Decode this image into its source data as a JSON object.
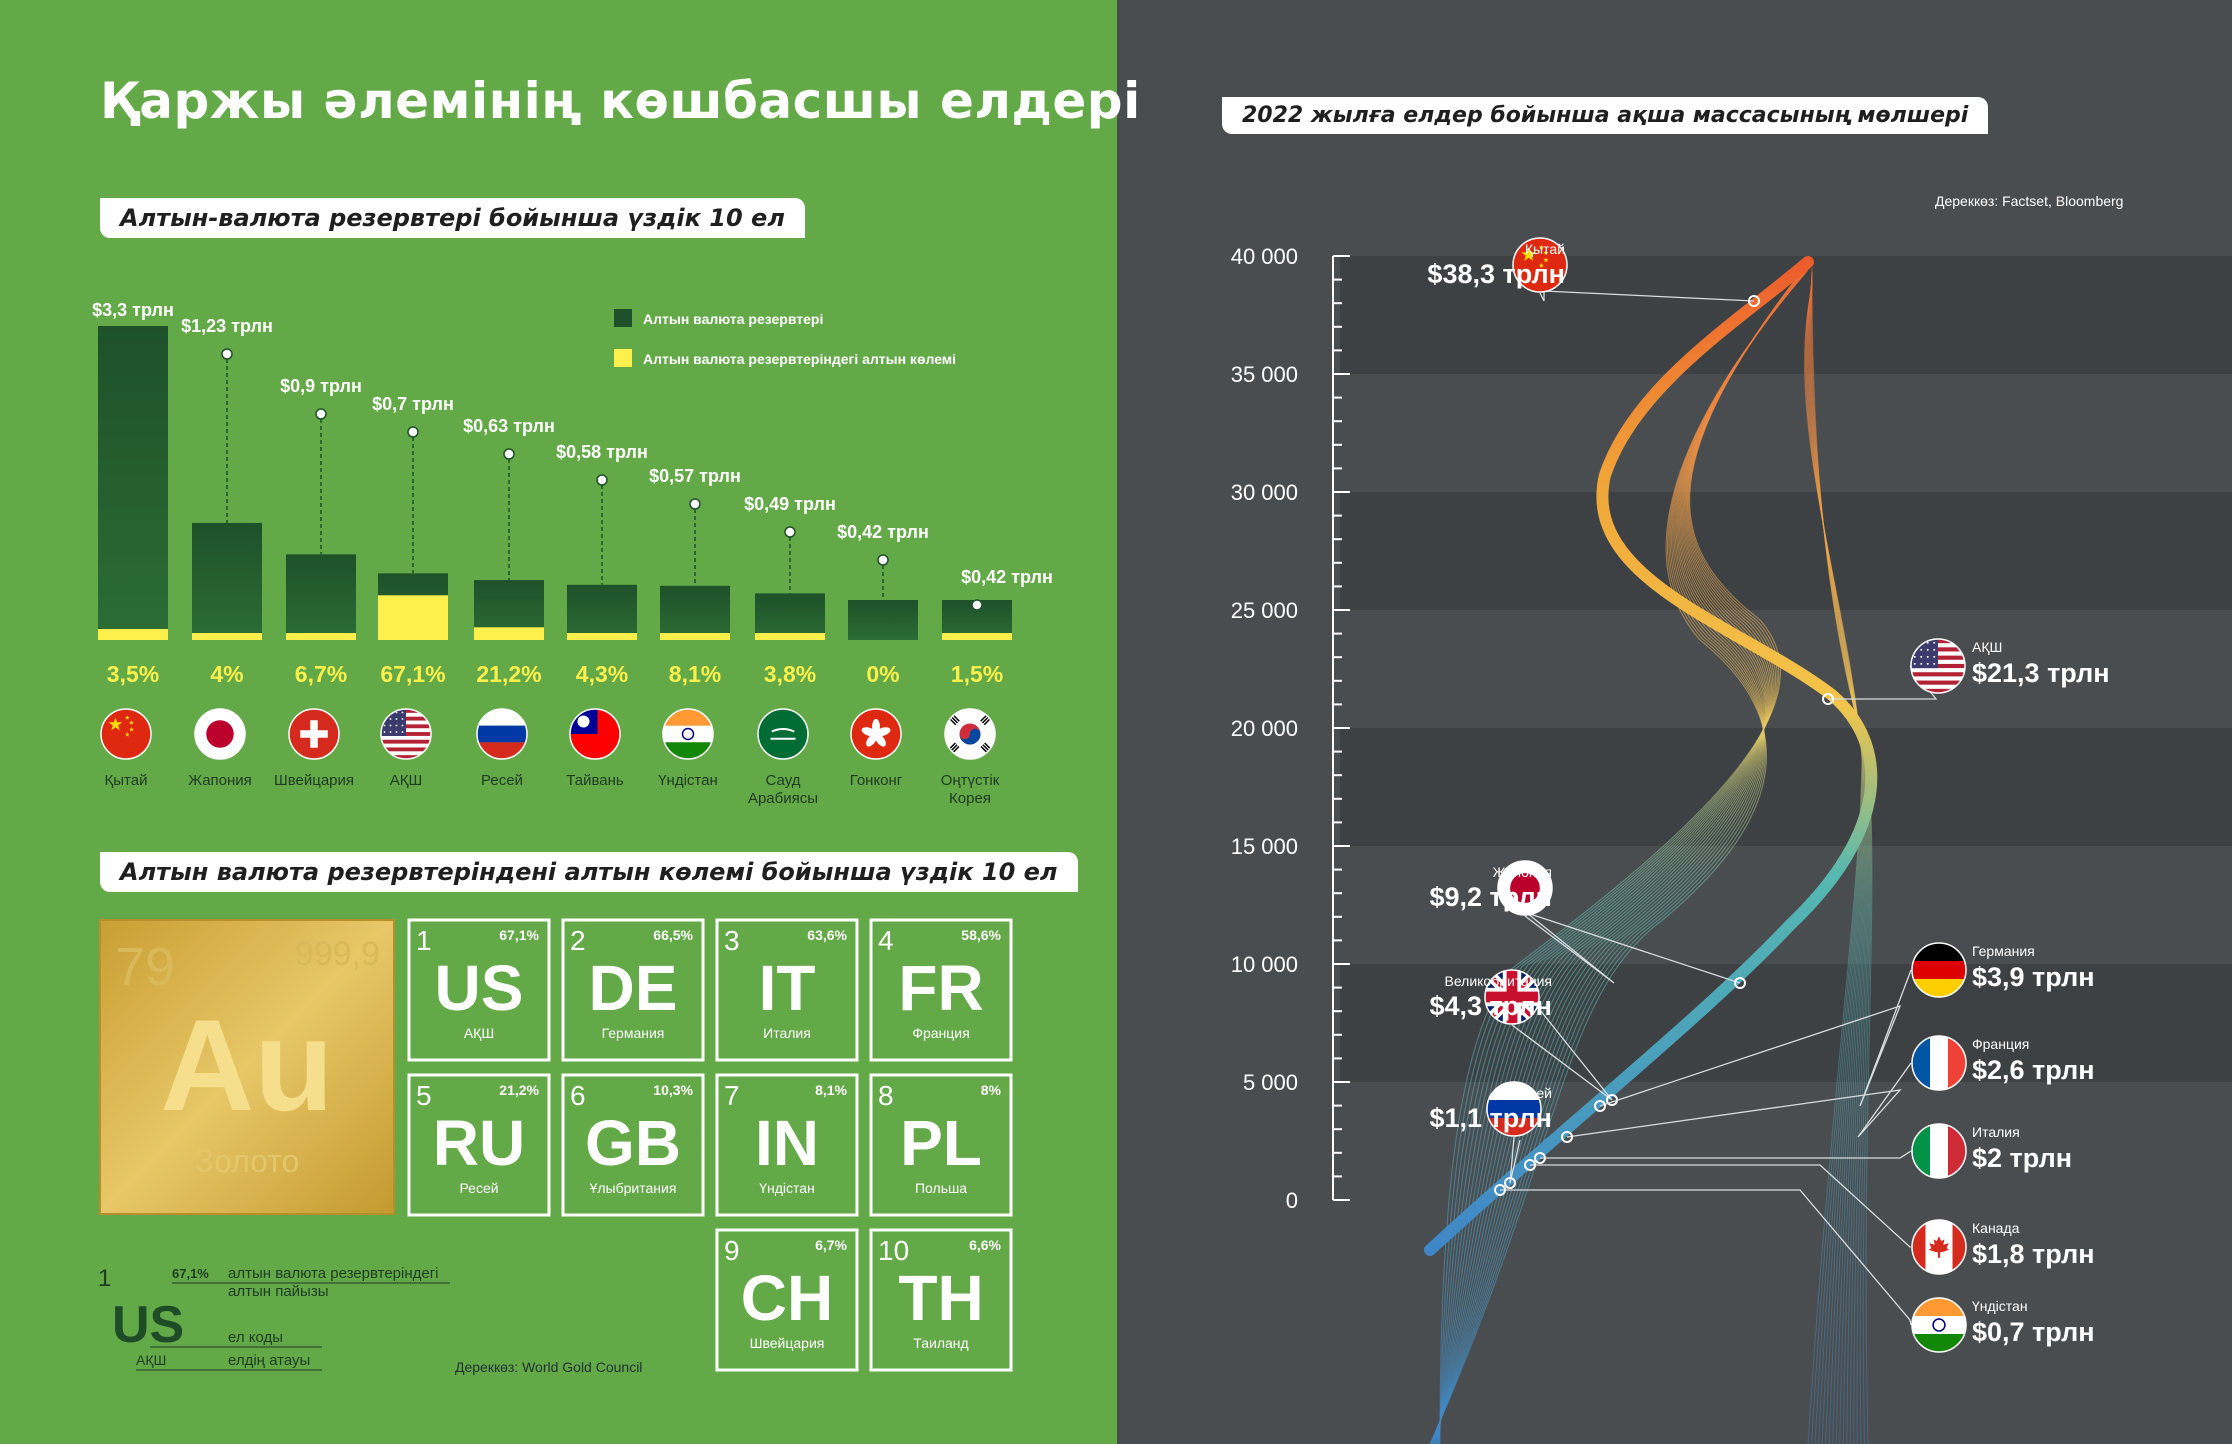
{
  "title": "Қаржы әлемінің көшбасшы елдері",
  "section1_title": "Алтын-валюта резервтері бойынша үздік 10 ел",
  "section2_title": "Алтын валюта резервтеріндені алтын көлемі бойынша үздік 10 ел",
  "right_title": "2022 жылға елдер бойынша ақша массасының мөлшері",
  "right_source": "Дереккөз: Factset, Bloomberg",
  "left_source": "Дереккөз: World Gold Council",
  "colors": {
    "dark_green": "#1e5129",
    "yellow": "#fdf04d",
    "left_bg": "#63a947",
    "right_bg": "#4a4d50",
    "orange": "#ef6a30",
    "blue": "#3f86c8"
  },
  "chart_data": [
    {
      "type": "bar",
      "title": "Алтын-валюта резервтері бойынша үздік 10 ел",
      "legend": [
        "Алтын валюта резервтері",
        "Алтын валюта резервтеріндегі алтын көлемі"
      ],
      "legend_position": "top-right",
      "categories": [
        "Қытай",
        "Жапония",
        "Швейцария",
        "АҚШ",
        "Ресей",
        "Тайвань",
        "Үндістан",
        "Сауд Арабиясы",
        "Гонконг",
        "Оңтүстік Корея"
      ],
      "value_labels": [
        "$3,3 трлн",
        "$1,23 трлн",
        "$0,9 трлн",
        "$0,7 трлн",
        "$0,63 трлн",
        "$0,58 трлн",
        "$0,57 трлн",
        "$0,49 трлн",
        "$0,42 трлн",
        "$0,42 трлн"
      ],
      "values": [
        3.3,
        1.23,
        0.9,
        0.7,
        0.63,
        0.58,
        0.57,
        0.49,
        0.42,
        0.42
      ],
      "gold_share_labels": [
        "3,5%",
        "4%",
        "6,7%",
        "67,1%",
        "21,2%",
        "4,3%",
        "8,1%",
        "3,8%",
        "0%",
        "1,5%"
      ],
      "gold_share": [
        3.5,
        4,
        6.7,
        67.1,
        21.2,
        4.3,
        8.1,
        3.8,
        0,
        1.5
      ],
      "flags": [
        "china-flag",
        "japan-flag",
        "switzerland-flag",
        "usa-flag",
        "russia-flag",
        "taiwan-flag",
        "india-flag",
        "saudi-flag",
        "hongkong-flag",
        "korea-flag"
      ]
    },
    {
      "type": "table",
      "title": "Алтын валюта резервтеріндені алтын көлемі бойынша үздік 10 ел",
      "element": {
        "number": "79",
        "purity": "999,9",
        "symbol": "Au",
        "name": "Золото"
      },
      "tiles": [
        {
          "rank": "1",
          "pct": "67,1",
          "code": "US",
          "name": "АҚШ"
        },
        {
          "rank": "2",
          "pct": "66,5",
          "code": "DE",
          "name": "Германия"
        },
        {
          "rank": "3",
          "pct": "63,6",
          "code": "IT",
          "name": "Италия"
        },
        {
          "rank": "4",
          "pct": "58,6",
          "code": "FR",
          "name": "Франция"
        },
        {
          "rank": "5",
          "pct": "21,2",
          "code": "RU",
          "name": "Ресей"
        },
        {
          "rank": "6",
          "pct": "10,3",
          "code": "GB",
          "name": "Ұлыбритания"
        },
        {
          "rank": "7",
          "pct": "8,1",
          "code": "IN",
          "name": "Үндістан"
        },
        {
          "rank": "8",
          "pct": "8",
          "code": "PL",
          "name": "Польша"
        },
        {
          "rank": "9",
          "pct": "6,7",
          "code": "CH",
          "name": "Швейцария"
        },
        {
          "rank": "10",
          "pct": "6,6",
          "code": "TH",
          "name": "Таиланд"
        }
      ],
      "pct_suffix": "%",
      "legend_key": {
        "rank": "1",
        "pct": "67,1%",
        "code": "US",
        "name": "АҚШ",
        "pct_desc": [
          "алтын валюта резервтеріндегі",
          "алтын пайызы"
        ],
        "code_desc": "ел коды",
        "name_desc": "елдің атауы"
      }
    },
    {
      "type": "line",
      "title": "2022 жылға елдер бойынша ақша массасының мөлшері",
      "ylim": [
        0,
        40000
      ],
      "y_ticks": [
        "0",
        "5 000",
        "10 000",
        "15 000",
        "20 000",
        "25 000",
        "30 000",
        "35 000",
        "40 000"
      ],
      "grid": true,
      "series": [
        {
          "points": [
            {
              "country": "Қытай",
              "label": "$38,3 трлн",
              "value": 38300,
              "flag": "china-flag",
              "side": "left"
            },
            {
              "country": "АҚШ",
              "label": "$21,3 трлн",
              "value": 21300,
              "flag": "usa-flag",
              "side": "right"
            },
            {
              "country": "Жапония",
              "label": "$9,2 трлн",
              "value": 9200,
              "flag": "japan-flag",
              "side": "left"
            },
            {
              "country": "Великобритания",
              "label": "$4,3 трлн",
              "value": 4300,
              "flag": "uk-flag",
              "side": "left"
            },
            {
              "country": "Германия",
              "label": "$3,9 трлн",
              "value": 3900,
              "flag": "germany-flag",
              "side": "right"
            },
            {
              "country": "Франция",
              "label": "$2,6 трлн",
              "value": 2600,
              "flag": "france-flag",
              "side": "right"
            },
            {
              "country": "Италия",
              "label": "$2 трлн",
              "value": 2000,
              "flag": "italy-flag",
              "side": "right"
            },
            {
              "country": "Канада",
              "label": "$1,8 трлн",
              "value": 1800,
              "flag": "canada-flag",
              "side": "right"
            },
            {
              "country": "Ресей",
              "label": "$1,1 трлн",
              "value": 1100,
              "flag": "russia-flag",
              "side": "left"
            },
            {
              "country": "Үндістан",
              "label": "$0,7 трлн",
              "value": 700,
              "flag": "india-flag",
              "side": "right"
            }
          ]
        }
      ]
    }
  ]
}
